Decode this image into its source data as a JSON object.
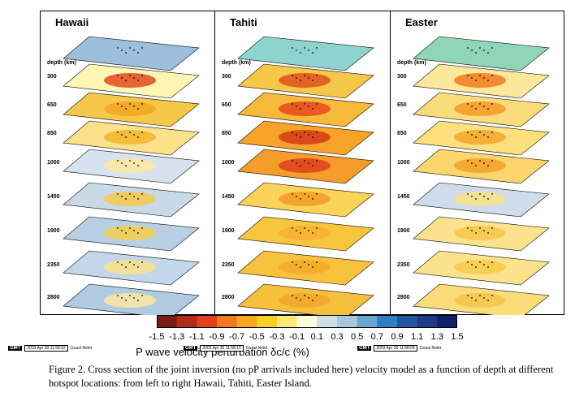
{
  "figure": {
    "panels": [
      {
        "title": "Hawaii"
      },
      {
        "title": "Tahiti"
      },
      {
        "title": "Easter"
      }
    ],
    "depth_header": "depth (km)",
    "depths": [
      "300",
      "650",
      "850",
      "1000",
      "1450",
      "1900",
      "2350",
      "2800"
    ],
    "colorbar": {
      "ticks": [
        "-1.5",
        "-1.3",
        "-1.1",
        "-0.9",
        "-0.7",
        "-0.5",
        "-0.3",
        "-0.1",
        "0.1",
        "0.3",
        "0.5",
        "0.7",
        "0.9",
        "1.1",
        "1.3",
        "1.5"
      ],
      "colors": [
        "#7a1c12",
        "#b32a18",
        "#e0401e",
        "#f07a1f",
        "#f7a81e",
        "#fbcf2a",
        "#fde97a",
        "#fffbd8",
        "#cfdfe8",
        "#a9c6dc",
        "#6aa6d4",
        "#2f7fc1",
        "#2457a3",
        "#1f3a86",
        "#141f6b"
      ],
      "title": "P wave velocity perturbation δc/c (%)"
    },
    "gmt_stamps": [
      {
        "tag": "GMT",
        "date": "2003 Apr 30 11:58:02",
        "author": "Guust Nolet"
      },
      {
        "tag": "GMT",
        "date": "2003 Apr 30 11:58:10",
        "author": "Guust Nolet"
      },
      {
        "tag": "GMT",
        "date": "2003 Apr 30 11:58:04",
        "author": "Guust Nolet"
      }
    ]
  },
  "caption": "Figure 2.  Cross section of the joint inversion (no pP arrivals included here) velocity model as a function of depth at different hotspot locations: from left to right Hawaii, Tahiti, Easter Island."
}
